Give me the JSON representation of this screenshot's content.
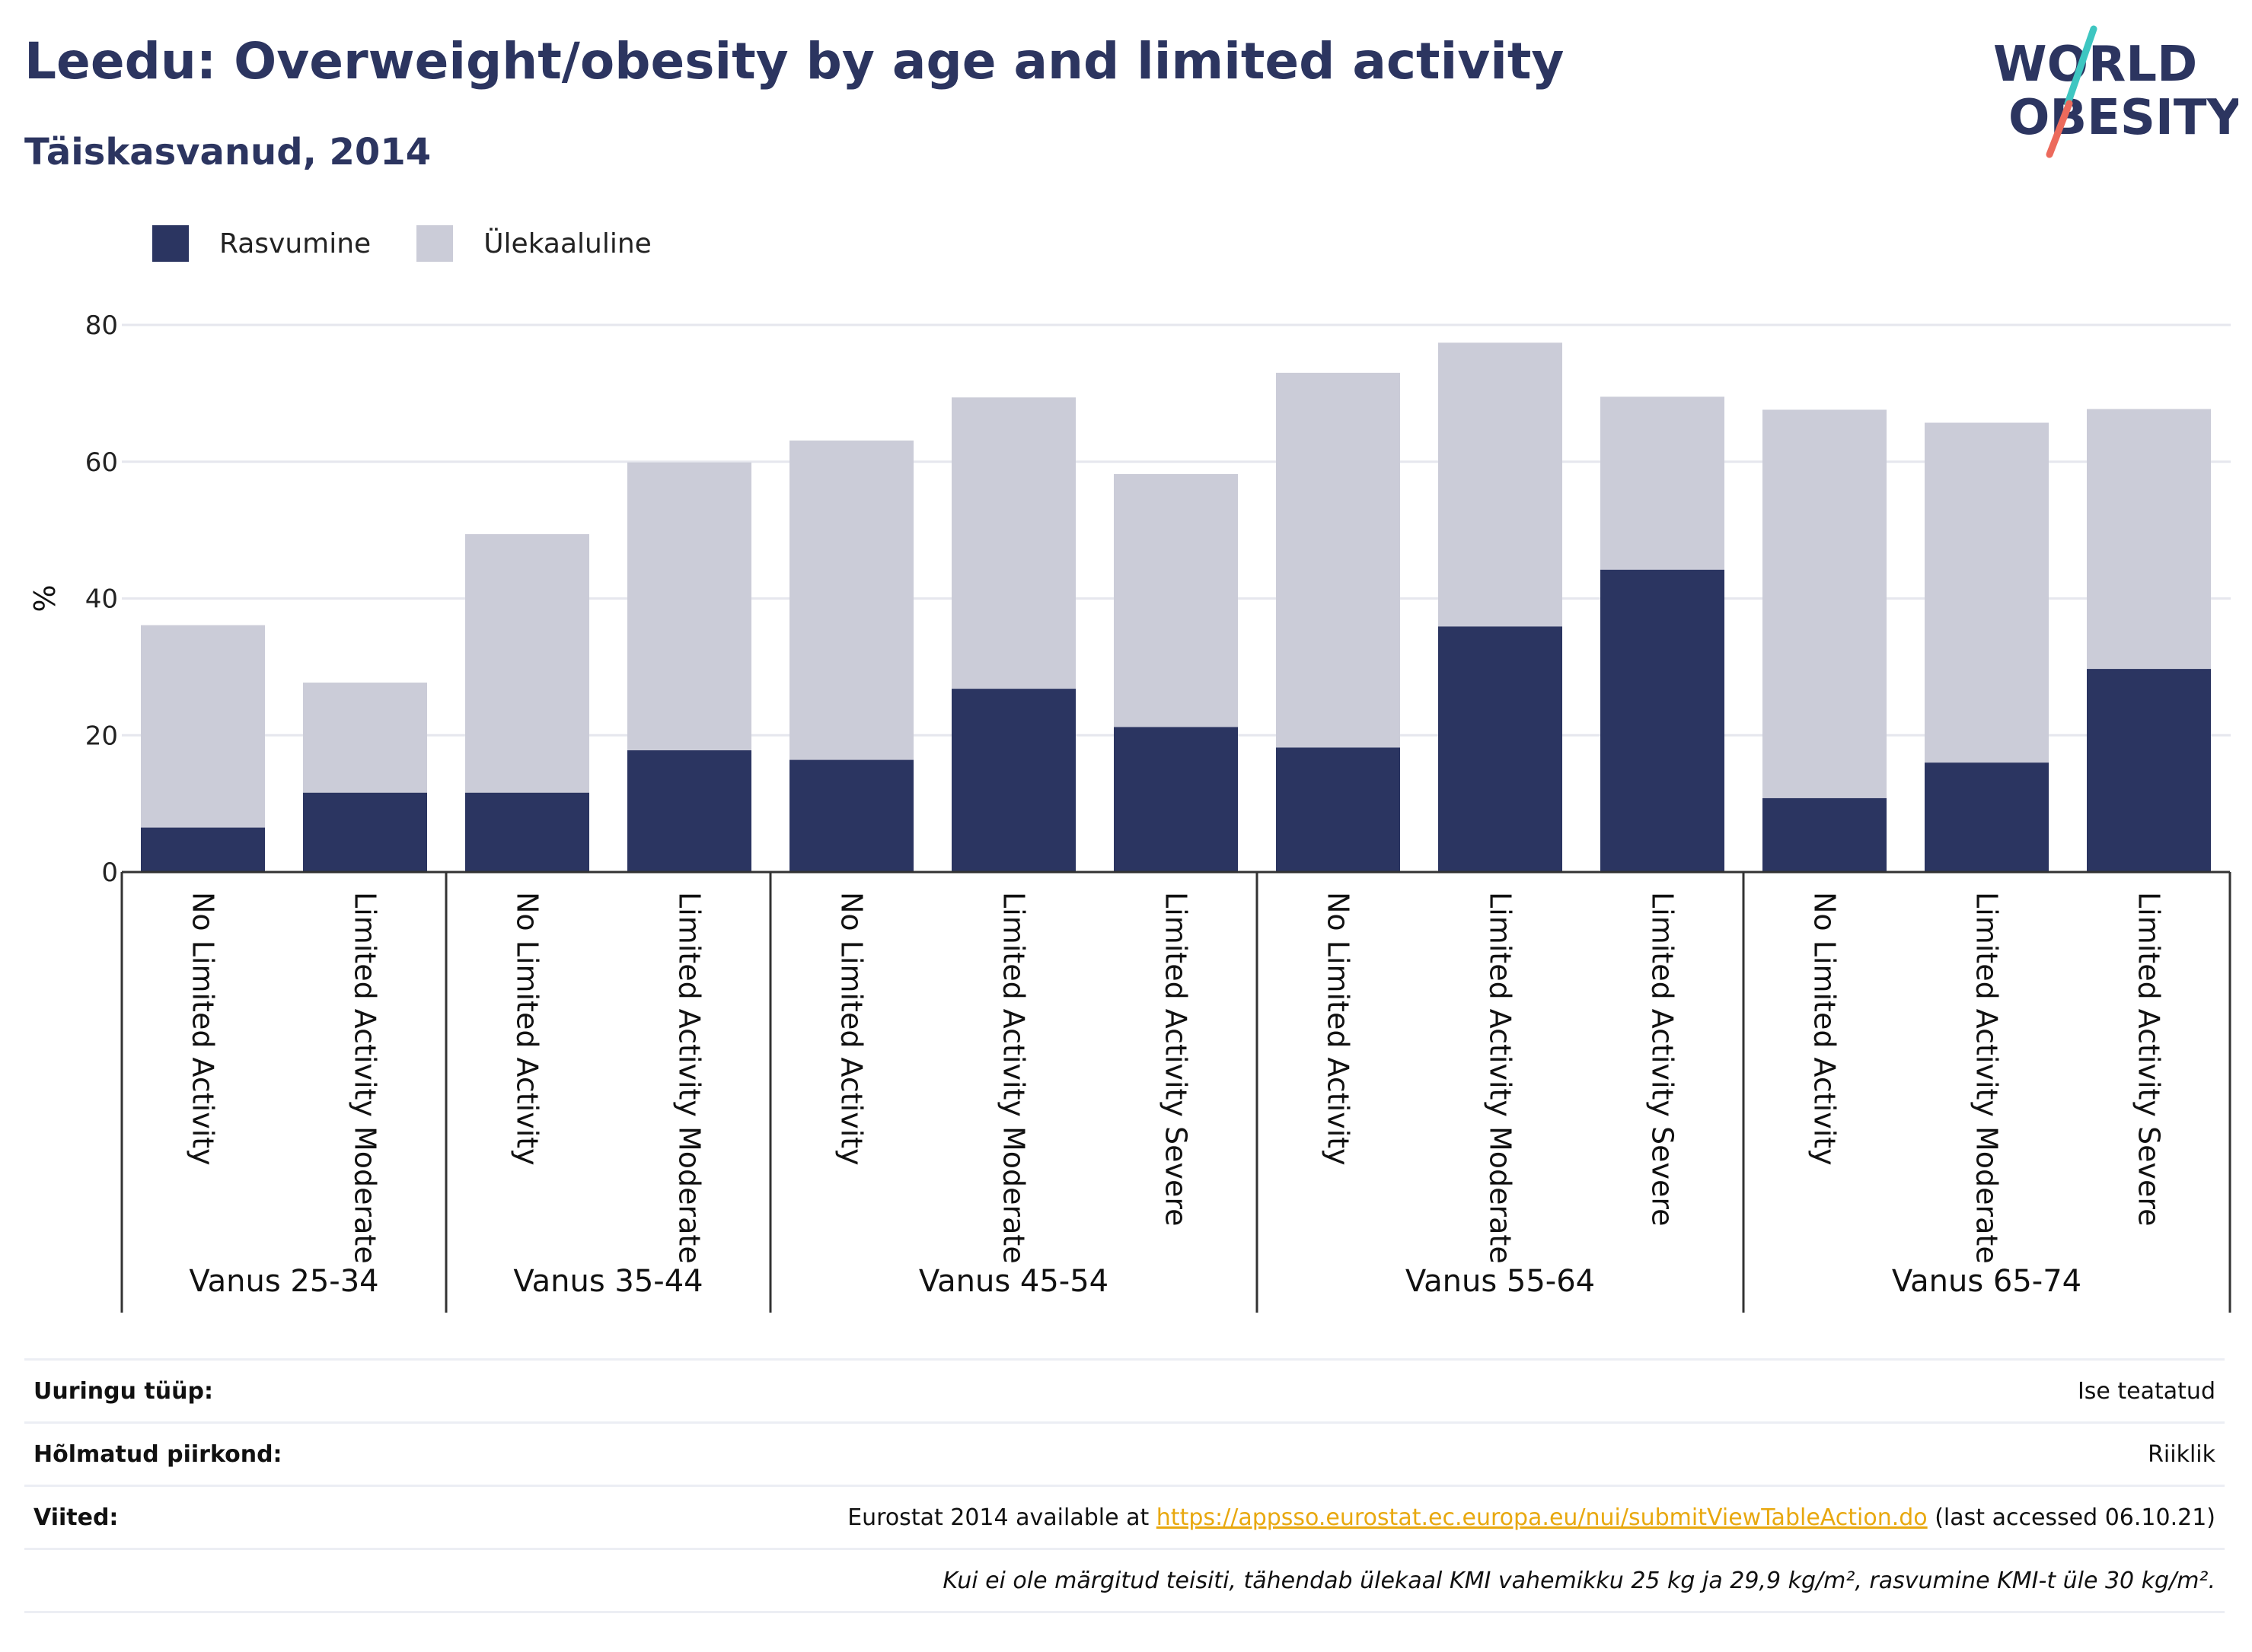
{
  "header": {
    "title": "Leedu: Overweight/obesity by age and limited activity",
    "subtitle": "Täiskasvanud, 2014",
    "logo_line1": "WORLD",
    "logo_line2": "OBESITY"
  },
  "colors": {
    "obesity": "#2b3561",
    "overweight": "#cbccd8",
    "title": "#2c3560",
    "link": "#e8a80f",
    "logo_teal": "#3ec6c1",
    "logo_red": "#ec6a5c"
  },
  "legend": {
    "obesity_label": "Rasvumine",
    "overweight_label": "Ülekaaluline"
  },
  "chart_data": {
    "type": "bar",
    "stacked": true,
    "ylabel": "%",
    "ylim": [
      0,
      80
    ],
    "yticks": [
      0,
      20,
      40,
      60,
      80
    ],
    "grid": true,
    "legend_position": "top-left",
    "groups": [
      {
        "label": "Vanus 25-34",
        "categories": [
          "No Limited Activity",
          "Limited Activity Moderate"
        ]
      },
      {
        "label": "Vanus 35-44",
        "categories": [
          "No Limited Activity",
          "Limited Activity Moderate"
        ]
      },
      {
        "label": "Vanus 45-54",
        "categories": [
          "No Limited Activity",
          "Limited Activity Moderate",
          "Limited Activity Severe"
        ]
      },
      {
        "label": "Vanus 55-64",
        "categories": [
          "No Limited Activity",
          "Limited Activity Moderate",
          "Limited Activity Severe"
        ]
      },
      {
        "label": "Vanus 65-74",
        "categories": [
          "No Limited Activity",
          "Limited Activity Moderate",
          "Limited Activity Severe"
        ]
      }
    ],
    "series": [
      {
        "name": "Rasvumine",
        "values": [
          6.5,
          11.6,
          11.6,
          17.8,
          16.4,
          26.8,
          21.2,
          18.2,
          35.9,
          44.2,
          10.8,
          16.0,
          29.7
        ]
      },
      {
        "name": "Ülekaaluline",
        "values": [
          29.6,
          16.1,
          37.8,
          42.1,
          46.7,
          42.6,
          37.0,
          54.8,
          41.5,
          25.3,
          56.8,
          49.7,
          38.0
        ]
      }
    ]
  },
  "meta": {
    "survey_type_label": "Uuringu tüüp:",
    "survey_type_value": "Ise teatatud",
    "coverage_label": "Hõlmatud piirkond:",
    "coverage_value": "Riiklik",
    "references_label": "Viited:",
    "references_prefix": "Eurostat 2014 available at",
    "references_link": "https://appsso.eurostat.ec.europa.eu/nui/submitViewTableAction.do",
    "references_suffix": "(last accessed 06.10.21)",
    "footnote": "Kui ei ole märgitud teisiti, tähendab ülekaal KMI vahemikku 25 kg ja 29,9 kg/m², rasvumine KMI-t üle 30 kg/m²."
  }
}
